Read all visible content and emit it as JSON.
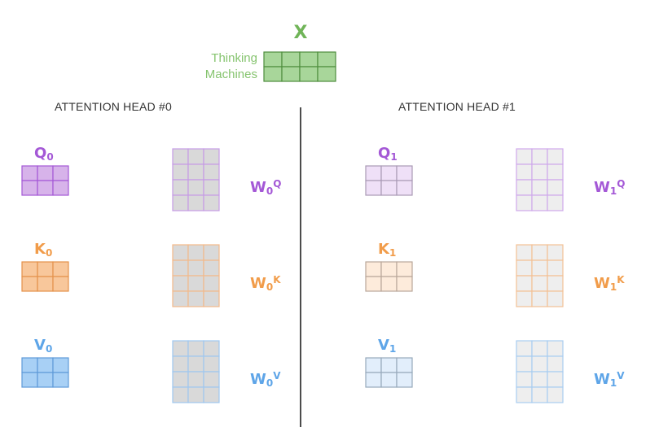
{
  "x_block": {
    "label": "X",
    "words": [
      "Thinking",
      "Machines"
    ],
    "color": "#70b458",
    "word_color": "#86c46f",
    "fill": "#a8d69a",
    "stroke": "#4e8d3d"
  },
  "heads": [
    {
      "title": "ATTENTION HEAD #0",
      "sub": "0",
      "matrices": [
        {
          "name": "Q",
          "weight_sup": "Q",
          "color": "#a458d6",
          "fill": "#d7b3ea",
          "stroke": "#a458d6",
          "w_stroke": "#c69be6"
        },
        {
          "name": "K",
          "weight_sup": "K",
          "color": "#f19c4a",
          "fill": "#f8c79b",
          "stroke": "#e4914a",
          "w_stroke": "#f3b98a"
        },
        {
          "name": "V",
          "weight_sup": "V",
          "color": "#5ea5e8",
          "fill": "#a8d0f5",
          "stroke": "#5e9ad8",
          "w_stroke": "#9fc7f0"
        }
      ],
      "weight_fill": "#d9d9d9"
    },
    {
      "title": "ATTENTION HEAD #1",
      "sub": "1",
      "matrices": [
        {
          "name": "Q",
          "weight_sup": "Q",
          "color": "#a458d6",
          "fill": "#efe0f7",
          "stroke": "#a99ab5",
          "w_stroke": "#cfa9ec"
        },
        {
          "name": "K",
          "weight_sup": "K",
          "color": "#f19c4a",
          "fill": "#fdebdb",
          "stroke": "#b9a699",
          "w_stroke": "#f3c195"
        },
        {
          "name": "V",
          "weight_sup": "V",
          "color": "#5ea5e8",
          "fill": "#e2eefb",
          "stroke": "#97a9bb",
          "w_stroke": "#a9cdf1"
        }
      ],
      "weight_fill": "#eeeeee"
    }
  ]
}
